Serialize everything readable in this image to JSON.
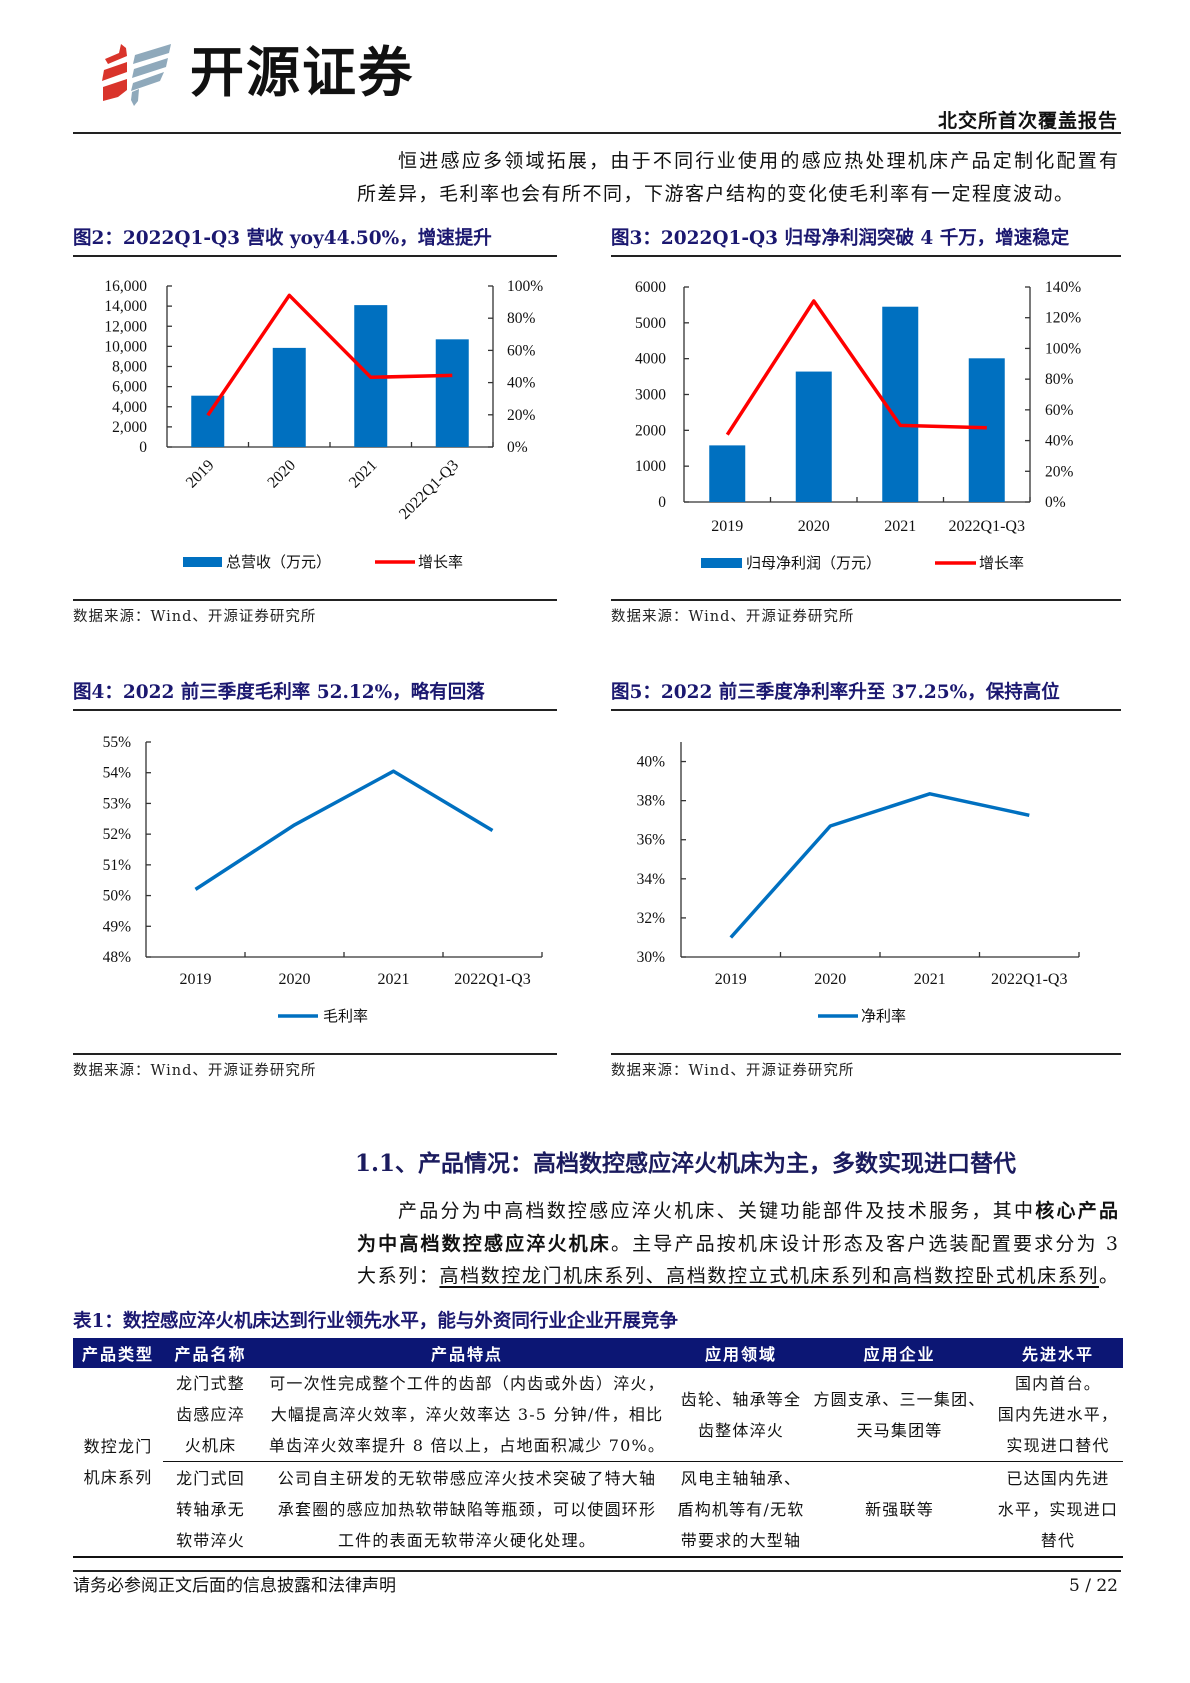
{
  "header": {
    "logo_text": "开源证券",
    "report_type": "北交所首次覆盖报告"
  },
  "intro": {
    "lines": [
      "恒进感应多领域拓展，由于不同行业使用的感应热处理机床产品定制化配置有",
      "所差异，毛利率也会有所不同，下游客户结构的变化使毛利率有一定程度波动。"
    ]
  },
  "figures": [
    {
      "title": "图2：2022Q1-Q3 营收 yoy44.50%，增速提升",
      "source": "数据来源：Wind、开源证券研究所"
    },
    {
      "title": "图3：2022Q1-Q3 归母净利润突破 4 千万，增速稳定",
      "source": "数据来源：Wind、开源证券研究所"
    },
    {
      "title": "图4：2022 前三季度毛利率 52.12%，略有回落",
      "source": "数据来源：Wind、开源证券研究所"
    },
    {
      "title": "图5：2022 前三季度净利率升至 37.25%，保持高位",
      "source": "数据来源：Wind、开源证券研究所"
    }
  ],
  "section": {
    "heading": "1.1、产品情况：高档数控感应淬火机床为主，多数实现进口替代",
    "paragraph_lines": [
      [
        {
          "text": "产品分为中高档数控感应淬火机床、关键功能部件及技术服务，其中"
        },
        {
          "text": "核心产品",
          "style": "bold"
        }
      ],
      [
        {
          "text": "为中高档数控感应淬火机床",
          "style": "bold"
        },
        {
          "text": "。主导产品按机床设计形态及客户选装配置要求分为 3"
        }
      ],
      [
        {
          "text": "大系列："
        },
        {
          "text": "高档数控龙门机床系列、高档数控立式机床系列和高档数控卧式机床系列",
          "style": "underline"
        },
        {
          "text": "。"
        }
      ]
    ]
  },
  "table": {
    "title": "表1：数控感应淬火机床达到行业领先水平，能与外资同行业企业开展竞争",
    "headers": [
      "产品类型",
      "产品名称",
      "产品特点",
      "应用领域",
      "应用企业",
      "先进水平"
    ],
    "rows": [
      {
        "type": [
          "数控龙门",
          "机床系列"
        ],
        "name": [
          "龙门式整",
          "齿感应淬",
          "火机床"
        ],
        "features": [
          "可一次性完成整个工件的齿部（内齿或外齿）淬火，",
          "大幅提高淬火效率，淬火效率达 3-5 分钟/件，相比",
          "单齿淬火效率提升 8 倍以上，占地面积减少 70%。"
        ],
        "field": [
          "齿轮、轴承等全",
          "齿整体淬火"
        ],
        "enterprises": [
          "方圆支承、三一集团、",
          "天马集团等"
        ],
        "level": [
          "国内首台。",
          "国内先进水平，",
          "实现进口替代"
        ]
      },
      {
        "name": [
          "龙门式回",
          "转轴承无",
          "软带淬火"
        ],
        "features": [
          "公司自主研发的无软带感应淬火技术突破了特大轴",
          "承套圈的感应加热软带缺陷等瓶颈，可以使圆环形",
          "工件的表面无软带淬火硬化处理。"
        ],
        "field": [
          "风电主轴轴承、",
          "盾构机等有/无软",
          "带要求的大型轴"
        ],
        "enterprises": [
          "新强联等"
        ],
        "level": [
          "已达国内先进",
          "水平，实现进口",
          "替代"
        ]
      }
    ]
  },
  "footer": {
    "disclaimer": "请务必参阅正文后面的信息披露和法律声明",
    "page": "5 / 22"
  },
  "colors": {
    "brand_red": "#D9342B",
    "brand_grey_blue": "#8FA9BB",
    "title_navy": "#1B1870",
    "table_header_bg": "#0C1674",
    "bar_blue": "#0070C0",
    "line_red": "#FF0000"
  },
  "chart_data": [
    {
      "type": "bar",
      "title": "图2：2022Q1-Q3 营收 yoy44.50%，增速提升",
      "categories": [
        "2019",
        "2020",
        "2021",
        "2022Q1-Q3"
      ],
      "series": [
        {
          "name": "总营收（万元）",
          "type": "bar",
          "axis": "left",
          "color": "#0070C0",
          "values": [
            5100,
            9850,
            14100,
            10700
          ]
        },
        {
          "name": "增长率",
          "type": "line",
          "axis": "right",
          "color": "#FF0000",
          "values": [
            19.7,
            94.2,
            43.3,
            44.5
          ]
        }
      ],
      "y_left": {
        "min": 0,
        "max": 16000,
        "ticks": [
          0,
          2000,
          4000,
          6000,
          8000,
          10000,
          12000,
          14000,
          16000
        ],
        "tick_labels": [
          "0",
          "2,000",
          "4,000",
          "6,000",
          "8,000",
          "10,000",
          "12,000",
          "14,000",
          "16,000"
        ]
      },
      "y_right": {
        "min": 0,
        "max": 100,
        "ticks": [
          0,
          20,
          40,
          60,
          80,
          100
        ],
        "tick_labels": [
          "0%",
          "20%",
          "40%",
          "60%",
          "80%",
          "100%"
        ]
      },
      "xlabel": "",
      "ylabel": "",
      "x_tick_rotation": -45,
      "grid": false,
      "legend_position": "bottom"
    },
    {
      "type": "bar",
      "title": "图3：2022Q1-Q3 归母净利润突破 4 千万，增速稳定",
      "categories": [
        "2019",
        "2020",
        "2021",
        "2022Q1-Q3"
      ],
      "series": [
        {
          "name": "归母净利润（万元）",
          "type": "bar",
          "axis": "left",
          "color": "#0070C0",
          "values": [
            1580,
            3640,
            5450,
            4010
          ]
        },
        {
          "name": "增长率",
          "type": "line",
          "axis": "right",
          "color": "#FF0000",
          "values": [
            43.8,
            130.9,
            49.9,
            48.3
          ]
        }
      ],
      "y_left": {
        "min": 0,
        "max": 6000,
        "ticks": [
          0,
          1000,
          2000,
          3000,
          4000,
          5000,
          6000
        ],
        "tick_labels": [
          "0",
          "1000",
          "2000",
          "3000",
          "4000",
          "5000",
          "6000"
        ]
      },
      "y_right": {
        "min": 0,
        "max": 140,
        "ticks": [
          0,
          20,
          40,
          60,
          80,
          100,
          120,
          140
        ],
        "tick_labels": [
          "0%",
          "20%",
          "40%",
          "60%",
          "80%",
          "100%",
          "120%",
          "140%"
        ]
      },
      "xlabel": "",
      "ylabel": "",
      "grid": false,
      "legend_position": "bottom"
    },
    {
      "type": "line",
      "title": "图4：2022 前三季度毛利率 52.12%，略有回落",
      "categories": [
        "2019",
        "2020",
        "2021",
        "2022Q1-Q3"
      ],
      "series": [
        {
          "name": "毛利率",
          "type": "line",
          "color": "#0070C0",
          "values": [
            50.2,
            52.3,
            54.05,
            52.12
          ]
        }
      ],
      "y": {
        "min": 48,
        "max": 55,
        "ticks": [
          48,
          49,
          50,
          51,
          52,
          53,
          54,
          55
        ],
        "tick_labels": [
          "48%",
          "49%",
          "50%",
          "51%",
          "52%",
          "53%",
          "54%",
          "55%"
        ]
      },
      "xlabel": "",
      "ylabel": "",
      "ylim": [
        48,
        55
      ],
      "grid": false,
      "legend_position": "bottom"
    },
    {
      "type": "line",
      "title": "图5：2022 前三季度净利率升至 37.25%，保持高位",
      "categories": [
        "2019",
        "2020",
        "2021",
        "2022Q1-Q3"
      ],
      "series": [
        {
          "name": "净利率",
          "type": "line",
          "color": "#0070C0",
          "values": [
            31.0,
            36.7,
            38.35,
            37.25
          ]
        }
      ],
      "y": {
        "min": 30,
        "max": 41,
        "ticks": [
          30,
          32,
          34,
          36,
          38,
          40
        ],
        "tick_labels": [
          "30%",
          "32%",
          "34%",
          "36%",
          "38%",
          "40%"
        ]
      },
      "xlabel": "",
      "ylabel": "",
      "ylim": [
        30,
        41
      ],
      "grid": false,
      "legend_position": "bottom"
    }
  ]
}
